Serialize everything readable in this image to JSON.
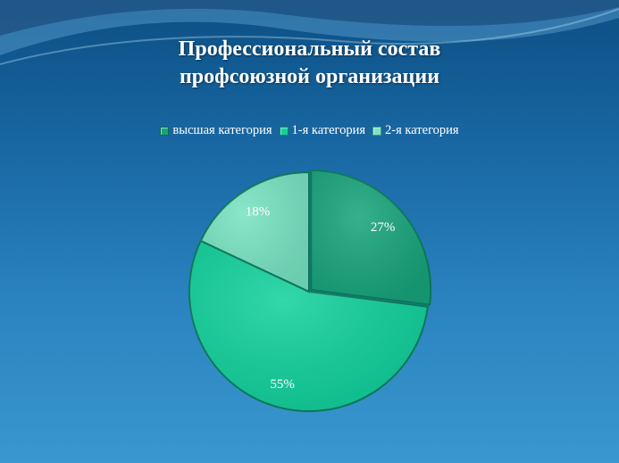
{
  "chart_data": {
    "type": "pie",
    "title": [
      "Профессиональный состав",
      "профсоюзной организации"
    ],
    "categories": [
      "высшая категория",
      "1-я категория",
      "2-я категория"
    ],
    "values": [
      27,
      55,
      18
    ],
    "labels": [
      "27%",
      "55%",
      "18%"
    ],
    "colors": [
      "#17a47b",
      "#11d19c",
      "#78e3c2"
    ],
    "legend_position": "top",
    "exploded": "высшая категория"
  }
}
